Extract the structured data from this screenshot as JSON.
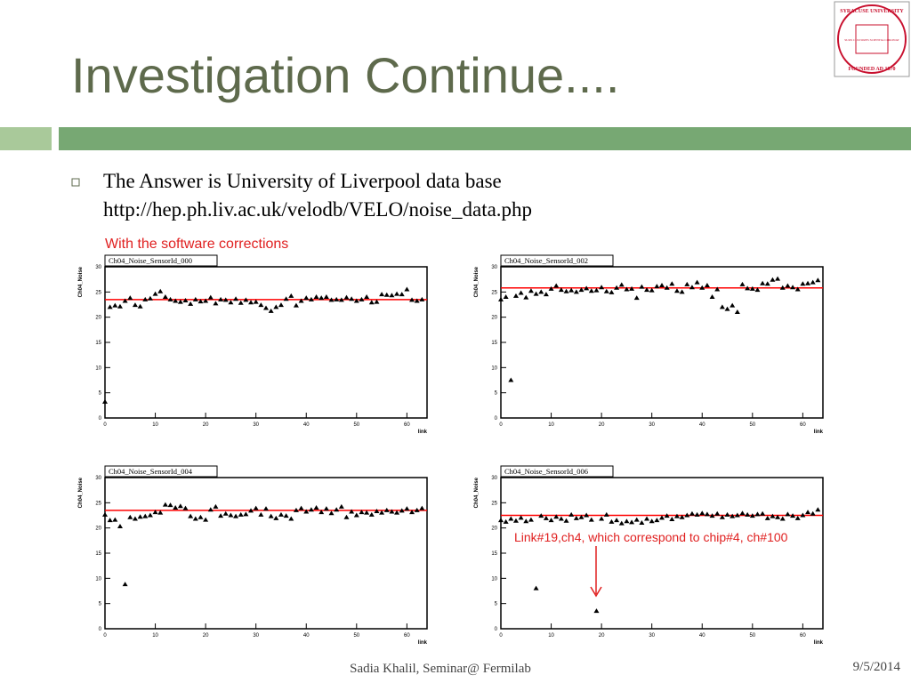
{
  "header": {
    "title": "Investigation Continue...."
  },
  "logo": {
    "top": "SYRACUSE UNIVERSITY",
    "motto": "SUOS CULTORES SCIENTIA CORONAT",
    "bottom": "FOUNDED AD 1870"
  },
  "body": {
    "bullet": "The Answer is University of Liverpool data base",
    "url": "http://hep.ph.liv.ac.uk/velodb/VELO/noise_data.php",
    "note": "With the software corrections",
    "annotation": "Link#19,ch4, which correspond to chip#4, ch#100"
  },
  "footer": {
    "author": "Sadia Khalil, Seminar@ Fermilab",
    "date": "9/5/2014"
  },
  "chart_data": [
    {
      "type": "scatter",
      "title": "Ch04_Noise_SensorId_000",
      "ylabel": "Ch04_Noise",
      "xlabel": "link",
      "color": "#000000",
      "reference_line": {
        "value": 23.5,
        "color": "#ff0000"
      },
      "xlim": [
        0,
        64
      ],
      "xticks": [
        0,
        10,
        20,
        30,
        40,
        50,
        60
      ],
      "ylim": [
        0,
        30
      ],
      "yticks": [
        0,
        5,
        10,
        15,
        20,
        25,
        30
      ],
      "x": [
        0,
        1,
        2,
        3,
        4,
        5,
        6,
        7,
        8,
        9,
        10,
        11,
        12,
        13,
        14,
        15,
        16,
        17,
        18,
        19,
        20,
        21,
        22,
        23,
        24,
        25,
        26,
        27,
        28,
        29,
        30,
        31,
        32,
        33,
        34,
        35,
        36,
        37,
        38,
        39,
        40,
        41,
        42,
        43,
        44,
        45,
        46,
        47,
        48,
        49,
        50,
        51,
        52,
        53,
        54,
        55,
        56,
        57,
        58,
        59,
        60,
        61,
        62,
        63
      ],
      "values": [
        3.2,
        22.0,
        22.3,
        22.1,
        23.2,
        23.8,
        22.4,
        22.1,
        23.5,
        23.7,
        24.6,
        25.1,
        24.0,
        23.5,
        23.2,
        23.0,
        23.3,
        22.6,
        23.5,
        23.1,
        23.2,
        23.9,
        22.7,
        23.5,
        23.4,
        22.9,
        23.6,
        22.8,
        23.4,
        22.9,
        23.0,
        22.4,
        21.8,
        21.2,
        22.0,
        22.4,
        23.6,
        24.2,
        22.3,
        23.2,
        23.8,
        23.5,
        24.0,
        23.8,
        24.0,
        23.4,
        23.5,
        23.4,
        23.9,
        23.6,
        23.2,
        23.5,
        24.0,
        22.9,
        23.0,
        24.5,
        24.4,
        24.3,
        24.6,
        24.5,
        25.5,
        23.4,
        23.2,
        23.5
      ]
    },
    {
      "type": "scatter",
      "title": "Ch04_Noise_SensorId_002",
      "ylabel": "Ch04_Noise",
      "xlabel": "link",
      "color": "#000000",
      "reference_line": {
        "value": 25.8,
        "color": "#ff0000"
      },
      "xlim": [
        0,
        64
      ],
      "xticks": [
        0,
        10,
        20,
        30,
        40,
        50,
        60
      ],
      "ylim": [
        0,
        30
      ],
      "yticks": [
        0,
        5,
        10,
        15,
        20,
        25,
        30
      ],
      "x": [
        0,
        1,
        2,
        3,
        4,
        5,
        6,
        7,
        8,
        9,
        10,
        11,
        12,
        13,
        14,
        15,
        16,
        17,
        18,
        19,
        20,
        21,
        22,
        23,
        24,
        25,
        26,
        27,
        28,
        29,
        30,
        31,
        32,
        33,
        34,
        35,
        36,
        37,
        38,
        39,
        40,
        41,
        42,
        43,
        44,
        45,
        46,
        47,
        48,
        49,
        50,
        51,
        52,
        53,
        54,
        55,
        56,
        57,
        58,
        59,
        60,
        61,
        62,
        63
      ],
      "values": [
        23.5,
        24.0,
        7.5,
        24.2,
        24.8,
        23.9,
        25.2,
        24.6,
        25.0,
        24.5,
        25.6,
        26.2,
        25.4,
        25.1,
        25.3,
        25.0,
        25.4,
        25.7,
        25.2,
        25.3,
        25.9,
        25.1,
        24.9,
        25.8,
        26.4,
        25.5,
        25.6,
        23.8,
        26.0,
        25.4,
        25.3,
        26.1,
        26.3,
        25.8,
        26.6,
        25.2,
        25.0,
        26.5,
        25.9,
        26.9,
        25.8,
        26.3,
        24.0,
        25.5,
        22.0,
        21.6,
        22.3,
        21.0,
        26.5,
        25.7,
        25.6,
        25.4,
        26.7,
        26.6,
        27.4,
        27.6,
        25.8,
        26.2,
        25.9,
        25.5,
        26.6,
        26.7,
        26.9,
        27.3
      ]
    },
    {
      "type": "scatter",
      "title": "Ch04_Noise_SensorId_004",
      "ylabel": "Ch04_Noise",
      "xlabel": "link",
      "color": "#000000",
      "reference_line": {
        "value": 23.5,
        "color": "#ff0000"
      },
      "xlim": [
        0,
        64
      ],
      "xticks": [
        0,
        10,
        20,
        30,
        40,
        50,
        60
      ],
      "ylim": [
        0,
        30
      ],
      "yticks": [
        0,
        5,
        10,
        15,
        20,
        25,
        30
      ],
      "x": [
        0,
        1,
        2,
        3,
        4,
        5,
        6,
        7,
        8,
        9,
        10,
        11,
        12,
        13,
        14,
        15,
        16,
        17,
        18,
        19,
        20,
        21,
        22,
        23,
        24,
        25,
        26,
        27,
        28,
        29,
        30,
        31,
        32,
        33,
        34,
        35,
        36,
        37,
        38,
        39,
        40,
        41,
        42,
        43,
        44,
        45,
        46,
        47,
        48,
        49,
        50,
        51,
        52,
        53,
        54,
        55,
        56,
        57,
        58,
        59,
        60,
        61,
        62,
        63
      ],
      "values": [
        22.6,
        21.5,
        21.6,
        20.3,
        8.8,
        22.1,
        21.8,
        22.2,
        22.3,
        22.5,
        23.1,
        23.0,
        24.6,
        24.5,
        24.0,
        24.3,
        23.9,
        22.3,
        21.8,
        22.1,
        21.6,
        23.6,
        24.2,
        22.4,
        22.8,
        22.5,
        22.3,
        22.6,
        22.7,
        23.4,
        23.9,
        22.6,
        23.8,
        22.3,
        21.9,
        22.6,
        22.4,
        21.8,
        23.5,
        23.9,
        23.2,
        23.6,
        24.0,
        23.1,
        23.8,
        22.9,
        23.6,
        24.2,
        22.1,
        23.2,
        22.5,
        23.1,
        23.0,
        22.6,
        23.3,
        23.0,
        23.5,
        23.2,
        23.0,
        23.4,
        23.8,
        23.1,
        23.5,
        23.9
      ]
    },
    {
      "type": "scatter",
      "title": "Ch04_Noise_SensorId_006",
      "ylabel": "Ch04_Noise",
      "xlabel": "link",
      "color": "#000000",
      "reference_line": {
        "value": 22.5,
        "color": "#ff0000"
      },
      "xlim": [
        0,
        64
      ],
      "xticks": [
        0,
        10,
        20,
        30,
        40,
        50,
        60
      ],
      "ylim": [
        0,
        30
      ],
      "yticks": [
        0,
        5,
        10,
        15,
        20,
        25,
        30
      ],
      "x": [
        0,
        1,
        2,
        3,
        4,
        5,
        6,
        7,
        8,
        9,
        10,
        11,
        12,
        13,
        14,
        15,
        16,
        17,
        18,
        19,
        20,
        21,
        22,
        23,
        24,
        25,
        26,
        27,
        28,
        29,
        30,
        31,
        32,
        33,
        34,
        35,
        36,
        37,
        38,
        39,
        40,
        41,
        42,
        43,
        44,
        45,
        46,
        47,
        48,
        49,
        50,
        51,
        52,
        53,
        54,
        55,
        56,
        57,
        58,
        59,
        60,
        61,
        62,
        63
      ],
      "values": [
        21.5,
        21.2,
        21.8,
        21.4,
        22.0,
        21.3,
        21.6,
        8.0,
        22.4,
        21.9,
        21.5,
        22.2,
        21.8,
        21.4,
        22.6,
        21.9,
        22.1,
        22.5,
        21.6,
        3.5,
        21.8,
        22.6,
        21.2,
        21.5,
        20.9,
        21.3,
        21.1,
        21.6,
        21.0,
        21.8,
        21.3,
        21.5,
        22.0,
        22.4,
        21.7,
        22.3,
        22.1,
        22.5,
        22.8,
        22.6,
        22.9,
        22.7,
        22.4,
        22.8,
        22.1,
        22.6,
        22.3,
        22.5,
        22.9,
        22.6,
        22.4,
        22.7,
        22.8,
        21.9,
        22.3,
        22.1,
        21.8,
        22.7,
        22.4,
        21.9,
        22.5,
        23.1,
        22.8,
        23.6
      ]
    }
  ]
}
